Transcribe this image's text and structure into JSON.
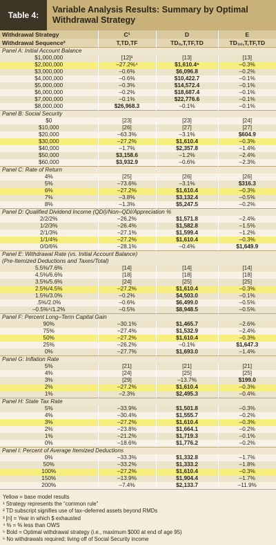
{
  "header": {
    "label": "Table 4:",
    "title": "Variable Analysis Results: Summary by Optimal Withdrawal Strategy"
  },
  "columns": {
    "strategy": [
      "Withdrawal Strategy",
      "C¹",
      "D",
      "E"
    ],
    "sequence": [
      "Withdrawal Sequence²",
      "T,TD,TF",
      "TD₀,T,TF,TD",
      "TD₃₀,T,TF,TD"
    ]
  },
  "sections": [
    {
      "title": "Panel A: Initial Account Balance",
      "rows": [
        {
          "cells": [
            "$1,000,000",
            "[12]³",
            "[13]",
            "[13]"
          ]
        },
        {
          "cells": [
            "$2,000,000",
            "–27.2%⁴",
            "$1,610.4⁵",
            "–0.3%"
          ],
          "base": true,
          "optimal": 2
        },
        {
          "cells": [
            "$3,000,000",
            "–0.6%",
            "$6,096.8",
            "–0.2%"
          ],
          "optimal": 2
        },
        {
          "cells": [
            "$4,000,000",
            "–0.6%",
            "$10,422.7",
            "–0.1%"
          ],
          "optimal": 2
        },
        {
          "cells": [
            "$5,000,000",
            "–0.3%",
            "$14,572.4",
            "–0.1%"
          ],
          "optimal": 2
        },
        {
          "cells": [
            "$6,000,000",
            "–0.2%",
            "$18,687.4",
            "–0.1%"
          ],
          "optimal": 2
        },
        {
          "cells": [
            "$7,000,000",
            "–0.1%",
            "$22,776.6",
            "–0.1%"
          ],
          "optimal": 2
        },
        {
          "cells": [
            "$8,000,000",
            "$26,968.3",
            "–0.1%",
            "–0.1%"
          ],
          "optimal": 1
        }
      ]
    },
    {
      "title": "Panel B: Social Security",
      "rows": [
        {
          "cells": [
            "$0",
            "[23]",
            "[23]",
            "[24]"
          ]
        },
        {
          "cells": [
            "$10,000",
            "[26]",
            "[27]",
            "[27]"
          ]
        },
        {
          "cells": [
            "$20,000",
            "–63.3%",
            "–3.1%",
            "$604.9"
          ],
          "optimal": 3
        },
        {
          "cells": [
            "$30,000",
            "–27.2%",
            "$1,610.4",
            "–0.3%"
          ],
          "base": true,
          "optimal": 2
        },
        {
          "cells": [
            "$40,000",
            "–1.7%",
            "$2,357.8",
            "–1.4%"
          ],
          "optimal": 2
        },
        {
          "cells": [
            "$50,000",
            "$3,158.6",
            "–1.2%",
            "–2.4%"
          ],
          "optimal": 1
        },
        {
          "cells": [
            "$60,000",
            "$3,932.9",
            "–0.6%",
            "–2.3%"
          ],
          "optimal": 1
        }
      ]
    },
    {
      "title": "Panel C: Rate of Return",
      "rows": [
        {
          "cells": [
            "4%",
            "[25]",
            "[26]",
            "[26]"
          ]
        },
        {
          "cells": [
            "5%",
            "–73.6%",
            "–3.1%",
            "$316.3"
          ],
          "optimal": 3
        },
        {
          "cells": [
            "6%",
            "–27.2%",
            "$1,610.4",
            "–0.3%"
          ],
          "base": true,
          "optimal": 2
        },
        {
          "cells": [
            "7%",
            "–3.8%",
            "$3,132.4",
            "–0.5%"
          ],
          "optimal": 2
        },
        {
          "cells": [
            "8%",
            "–1.3%",
            "$5,247.5",
            "–0.2%"
          ],
          "optimal": 2
        }
      ]
    },
    {
      "title": "Panel D: Qualified Dividend Income (QDI)/Non–QDI/Appreciation %",
      "rows": [
        {
          "cells": [
            "2/2/2%",
            "–26.2%",
            "$1,571.8",
            "–2.4%"
          ],
          "optimal": 2
        },
        {
          "cells": [
            "1/2/3%",
            "–26.4%",
            "$1,582.8",
            "–1.5%"
          ],
          "optimal": 2
        },
        {
          "cells": [
            "2/1/3%",
            "–27.1%",
            "$1,599.4",
            "–1.2%"
          ],
          "optimal": 2
        },
        {
          "cells": [
            "1/1/4%",
            "–27.2%",
            "$1,610.4",
            "–0.3%"
          ],
          "base": true,
          "optimal": 2
        },
        {
          "cells": [
            "0/0/6%",
            "–28.1%",
            "–0.4%",
            "$1,649.9"
          ],
          "optimal": 3
        }
      ]
    },
    {
      "title": "Panel E: Withdrawal Rate (vs. Initial Account Balance)",
      "subtitle": "(Pre-Itemized Deductions and Taxes/Total)",
      "rows": [
        {
          "cells": [
            "5.5%/7.6%",
            "[14]",
            "[14]",
            "[14]"
          ]
        },
        {
          "cells": [
            "4.5%/6.6%",
            "[18]",
            "[18]",
            "[18]"
          ]
        },
        {
          "cells": [
            "3.5%/5.6%",
            "[24]",
            "[25]",
            "[25]"
          ]
        },
        {
          "cells": [
            "2.5%/4.5%",
            "–27.2%",
            "$1,610.4",
            "–0.3%"
          ],
          "base": true,
          "optimal": 2
        },
        {
          "cells": [
            "1.5%/3.0%",
            "–0.2%",
            "$4,503.0",
            "–0.1%"
          ],
          "optimal": 2
        },
        {
          "cells": [
            ".5%/2.0%",
            "–0.6%",
            "$6,499.0",
            "–0.5%"
          ],
          "optimal": 2
        },
        {
          "cells": [
            "–0.5%⁶/1.2%",
            "–0.5%",
            "$8,948.5",
            "–0.5%"
          ],
          "optimal": 2
        }
      ]
    },
    {
      "title": "Panel F: Percent Long–Term Capital Gain",
      "rows": [
        {
          "cells": [
            "90%",
            "–30.1%",
            "$1,465.7",
            "–2.6%"
          ],
          "optimal": 2
        },
        {
          "cells": [
            "75%",
            "–27.4%",
            "$1,532.9",
            "–2.4%"
          ],
          "optimal": 2
        },
        {
          "cells": [
            "50%",
            "–27.2%",
            "$1,610.4",
            "–0.3%"
          ],
          "base": true,
          "optimal": 2
        },
        {
          "cells": [
            "25%",
            "–26.2%",
            "–0.1%",
            "$1,647.3"
          ],
          "optimal": 3
        },
        {
          "cells": [
            "0%",
            "–27.7%",
            "$1,693.0",
            "–1.4%"
          ],
          "optimal": 2
        }
      ]
    },
    {
      "title": "Panel G: Inflation Rate",
      "rows": [
        {
          "cells": [
            "5%",
            "[21]",
            "[21]",
            "[21]"
          ]
        },
        {
          "cells": [
            "4%",
            "[24]",
            "[25]",
            "[25]"
          ]
        },
        {
          "cells": [
            "3%",
            "[29]",
            "–13.7%",
            "$199.0"
          ],
          "optimal": 3
        },
        {
          "cells": [
            "2%",
            "–27.2%",
            "$1,610.4",
            "–0.3%"
          ],
          "base": true,
          "optimal": 2
        },
        {
          "cells": [
            "1%",
            "–2.3%",
            "$2,495.3",
            "–0.4%"
          ],
          "optimal": 2
        }
      ]
    },
    {
      "title": "Panel H: State Tax Rate",
      "rows": [
        {
          "cells": [
            "5%",
            "–33.9%",
            "$1,501.8",
            "–0.3%"
          ],
          "optimal": 2
        },
        {
          "cells": [
            "4%",
            "–30.4%",
            "$1,555.7",
            "–0.2%"
          ],
          "optimal": 2
        },
        {
          "cells": [
            "3%",
            "–27.2%",
            "$1,610.4",
            "–0.3%"
          ],
          "base": true,
          "optimal": 2
        },
        {
          "cells": [
            "2%",
            "–23.8%",
            "$1,664.1",
            "–0.2%"
          ],
          "optimal": 2
        },
        {
          "cells": [
            "1%",
            "–21.2%",
            "$1,719.3",
            "–0.1%"
          ],
          "optimal": 2
        },
        {
          "cells": [
            "0%",
            "–18.6%",
            "$1,776.2",
            "–0.2%"
          ],
          "optimal": 2
        }
      ]
    },
    {
      "title": "Panel I: Percent of Average Itemized Deductions",
      "rows": [
        {
          "cells": [
            "0%",
            "–33.3%",
            "$1,332.8",
            "–1.7%"
          ],
          "optimal": 2
        },
        {
          "cells": [
            "50%",
            "–33.2%",
            "$1,333.2",
            "–1.8%"
          ],
          "optimal": 2
        },
        {
          "cells": [
            "100%",
            "–27.2%",
            "$1,610.4",
            "–0.3%"
          ],
          "base": true,
          "optimal": 2
        },
        {
          "cells": [
            "150%",
            "–13.9%",
            "$1,904.4",
            "–1.7%"
          ],
          "optimal": 2
        },
        {
          "cells": [
            "200%",
            "–7.4%",
            "$2,133.7",
            "–11.9%"
          ],
          "optimal": 2
        }
      ]
    }
  ],
  "footnotes": [
    "Yellow = base model results",
    "¹ Strategy represents the “common rule”",
    "² TD subscript signifies use of tax–deferred assets beyond RMDs",
    "³ [n] = Year in which $ exhausted",
    "⁴ % = % less than OWS",
    "⁵ Bold = Optimal withdrawal strategy (i.e., maximum $000 at end of age 95)",
    "⁶ No withdrawals required; living off of Social Security income"
  ]
}
